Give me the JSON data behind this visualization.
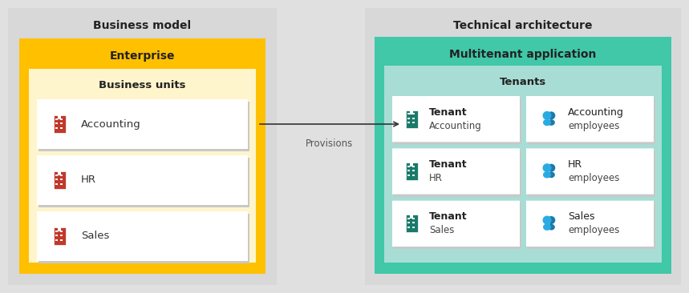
{
  "fig_w": 8.59,
  "fig_h": 3.66,
  "dpi": 100,
  "bg": "#e0e0e0",
  "left": {
    "title": "Business model",
    "outer_bg": "#d8d8d8",
    "enterprise_bg": "#FFC000",
    "enterprise_label": "Enterprise",
    "units_bg": "#FFF5CC",
    "units_label": "Business units",
    "items": [
      "Accounting",
      "HR",
      "Sales"
    ],
    "building_color": "#C0392B"
  },
  "right": {
    "title": "Technical architecture",
    "outer_bg": "#d8d8d8",
    "app_bg": "#40C8A8",
    "app_label": "Multitenant application",
    "tenants_bg": "#A8DDD5",
    "tenants_label": "Tenants",
    "tenant_items": [
      "Accounting",
      "HR",
      "Sales"
    ],
    "employee_items": [
      "Accounting\nemployees",
      "HR\nemployees",
      "Sales\nemployees"
    ],
    "building_color": "#1A7A6A",
    "people_color_light": "#29ABE2",
    "people_color_dark": "#1A7AAA"
  },
  "arrow_label": "Provisions",
  "card_bg": "#FFFFFF",
  "card_shadow": "#C8C8C8"
}
